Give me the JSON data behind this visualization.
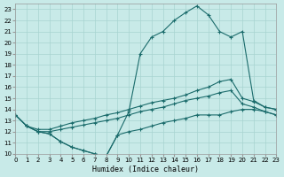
{
  "xlabel": "Humidex (Indice chaleur)",
  "bg_color": "#c8eae8",
  "grid_color": "#a8d4d0",
  "line_color": "#1a6b6b",
  "xlim": [
    0,
    23
  ],
  "ylim": [
    10,
    23.5
  ],
  "yticks": [
    10,
    11,
    12,
    13,
    14,
    15,
    16,
    17,
    18,
    19,
    20,
    21,
    22,
    23
  ],
  "xticks": [
    0,
    1,
    2,
    3,
    4,
    5,
    6,
    7,
    8,
    9,
    10,
    11,
    12,
    13,
    14,
    15,
    16,
    17,
    18,
    19,
    20,
    21,
    22,
    23
  ],
  "lines": [
    {
      "x": [
        0,
        1,
        2,
        3,
        4,
        5,
        6,
        7,
        8,
        9,
        10,
        11,
        12,
        13,
        14,
        15,
        16,
        17,
        18,
        19,
        20,
        21,
        22,
        23
      ],
      "y": [
        13.5,
        12.5,
        12.0,
        11.8,
        11.1,
        10.6,
        10.3,
        10.0,
        9.8,
        11.7,
        13.8,
        19.0,
        20.5,
        21.0,
        22.0,
        22.7,
        23.3,
        22.5,
        21.0,
        20.5,
        21.0,
        14.8,
        14.2,
        14.0
      ]
    },
    {
      "x": [
        0,
        1,
        2,
        3,
        4,
        5,
        6,
        7,
        8,
        9,
        10,
        11,
        12,
        13,
        14,
        15,
        16,
        17,
        18,
        19,
        20,
        21,
        22,
        23
      ],
      "y": [
        13.5,
        12.5,
        12.2,
        12.2,
        12.5,
        12.8,
        13.0,
        13.2,
        13.5,
        13.7,
        14.0,
        14.3,
        14.6,
        14.8,
        15.0,
        15.3,
        15.7,
        16.0,
        16.5,
        16.7,
        15.0,
        14.7,
        14.2,
        14.0
      ]
    },
    {
      "x": [
        0,
        1,
        2,
        3,
        4,
        5,
        6,
        7,
        8,
        9,
        10,
        11,
        12,
        13,
        14,
        15,
        16,
        17,
        18,
        19,
        20,
        21,
        22,
        23
      ],
      "y": [
        13.5,
        12.5,
        12.0,
        12.0,
        12.2,
        12.4,
        12.6,
        12.8,
        13.0,
        13.2,
        13.5,
        13.8,
        14.0,
        14.2,
        14.5,
        14.8,
        15.0,
        15.2,
        15.5,
        15.7,
        14.5,
        14.2,
        13.8,
        13.5
      ]
    },
    {
      "x": [
        0,
        1,
        2,
        3,
        4,
        5,
        6,
        7,
        8,
        9,
        10,
        11,
        12,
        13,
        14,
        15,
        16,
        17,
        18,
        19,
        20,
        21,
        22,
        23
      ],
      "y": [
        13.5,
        12.5,
        12.0,
        11.8,
        11.1,
        10.6,
        10.3,
        10.0,
        9.8,
        11.7,
        12.0,
        12.2,
        12.5,
        12.8,
        13.0,
        13.2,
        13.5,
        13.5,
        13.5,
        13.8,
        14.0,
        14.0,
        13.8,
        13.5
      ]
    }
  ]
}
